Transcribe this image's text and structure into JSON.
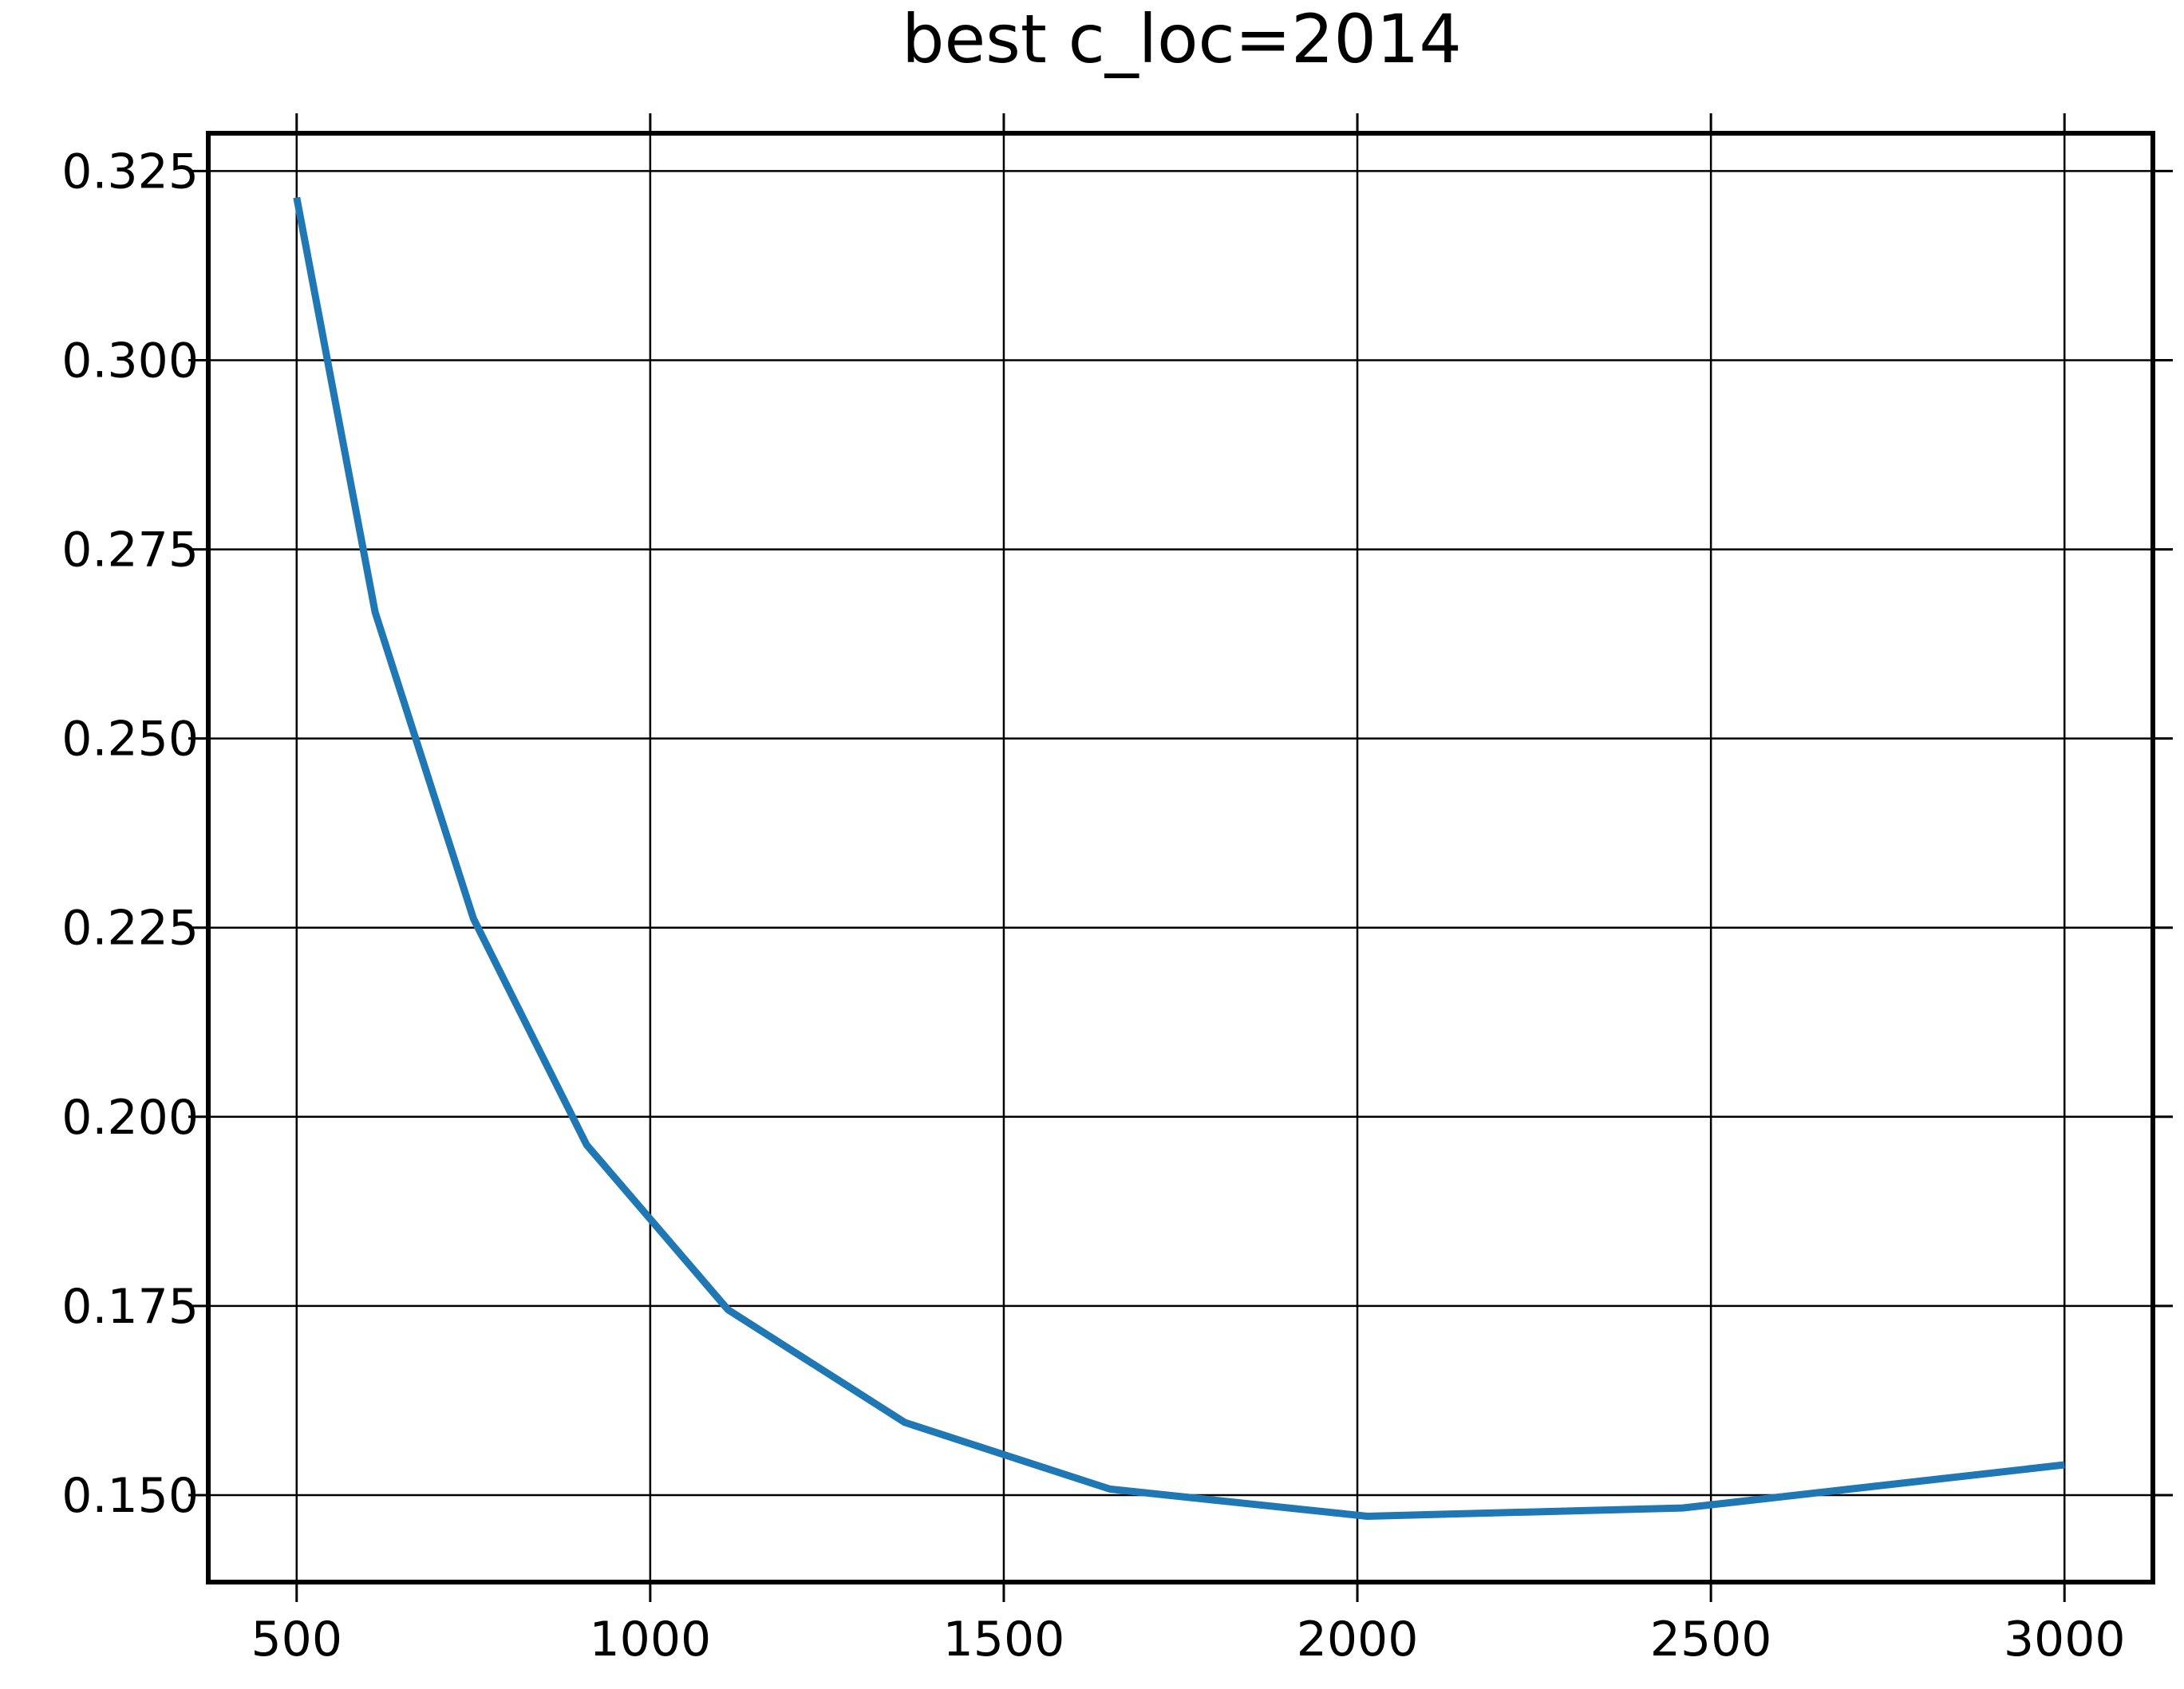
{
  "chart_data": {
    "type": "line",
    "title": "best c_loc=2014",
    "xlabel": "",
    "ylabel": "",
    "xlim": [
      375,
      3125
    ],
    "ylim": [
      0.1385,
      0.33
    ],
    "x_ticks": [
      500,
      1000,
      1500,
      2000,
      2500,
      3000
    ],
    "x_tick_labels": [
      "500",
      "1000",
      "1500",
      "2000",
      "2500",
      "3000"
    ],
    "y_ticks": [
      0.15,
      0.175,
      0.2,
      0.225,
      0.25,
      0.275,
      0.3,
      0.325
    ],
    "y_tick_labels": [
      "0.150",
      "0.175",
      "0.200",
      "0.225",
      "0.250",
      "0.275",
      "0.300",
      "0.325"
    ],
    "grid": true,
    "series": [
      {
        "color": "#1f77b4",
        "x": [
          500,
          611,
          750,
          910,
          1110,
          1360,
          1650,
          2014,
          2460,
          3000
        ],
        "y": [
          0.3215,
          0.2667,
          0.2262,
          0.1963,
          0.1745,
          0.1596,
          0.1508,
          0.1472,
          0.1483,
          0.154
        ]
      }
    ]
  }
}
